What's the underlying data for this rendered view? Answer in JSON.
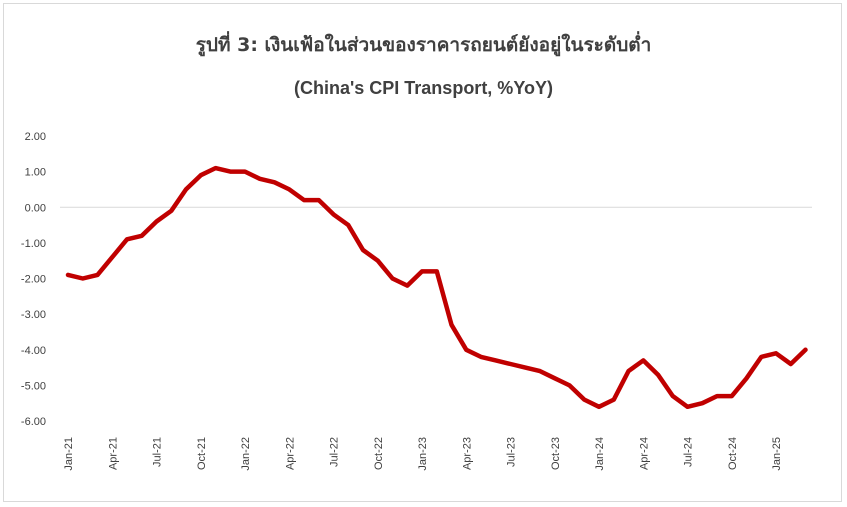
{
  "chart_data": {
    "type": "line",
    "title": "รูปที่ 3: เงินเฟ้อในส่วนของราคารถยนต์ยังอยู่ในระดับต่ำ",
    "subtitle": "(China's CPI Transport, %YoY)",
    "xlabel": "",
    "ylabel": "",
    "ylim": [
      -6,
      2
    ],
    "y_ticks": [
      "2.00",
      "1.00",
      "0.00",
      "-1.00",
      "-2.00",
      "-3.00",
      "-4.00",
      "-5.00",
      "-6.00"
    ],
    "x_tick_labels": [
      "Jan-21",
      "Apr-21",
      "Jul-21",
      "Oct-21",
      "Jan-22",
      "Apr-22",
      "Jul-22",
      "Oct-22",
      "Jan-23",
      "Apr-23",
      "Jul-23",
      "Oct-23",
      "Jan-24",
      "Apr-24",
      "Jul-24",
      "Oct-24",
      "Jan-25"
    ],
    "x_tick_every": 3,
    "grid": "zero-line only",
    "line_color": "#c00000",
    "series": [
      {
        "values": [
          -1.9,
          -2.0,
          -1.9,
          -1.4,
          -0.9,
          -0.8,
          -0.4,
          -0.1,
          0.5,
          0.9,
          1.1,
          1.0,
          1.0,
          0.8,
          0.7,
          0.5,
          0.2,
          0.2,
          -0.2,
          -0.5,
          -1.2,
          -1.5,
          -2.0,
          -2.2,
          -1.8,
          -1.8,
          -3.3,
          -4.0,
          -4.2,
          -4.3,
          -4.4,
          -4.5,
          -4.6,
          -4.8,
          -5.0,
          -5.4,
          -5.6,
          -5.4,
          -4.6,
          -4.3,
          -4.7,
          -5.3,
          -5.6,
          -5.5,
          -5.3,
          -5.3,
          -4.8,
          -4.2,
          -4.1,
          -4.4,
          -4.0
        ]
      }
    ]
  }
}
